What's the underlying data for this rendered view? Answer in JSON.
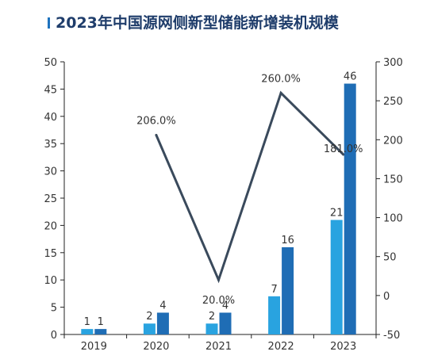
{
  "title": "2023年中国源网侧新型储能新增装机规模",
  "chart_data": {
    "type": "bar",
    "categories": [
      "2019",
      "2020",
      "2021",
      "2022",
      "2023"
    ],
    "series": [
      {
        "kind": "bar",
        "values": [
          1,
          2,
          2,
          7,
          21
        ],
        "color": "#29a3e0"
      },
      {
        "kind": "bar",
        "values": [
          1,
          4,
          4,
          16,
          46
        ],
        "color": "#1f6db5"
      },
      {
        "kind": "line",
        "axis": "right",
        "values": [
          null,
          206.0,
          20.0,
          260.0,
          181.0
        ],
        "labels": [
          "",
          "206.0%",
          "20.0%",
          "260.0%",
          "181.0%"
        ],
        "color": "#3a4a5c"
      }
    ],
    "yleft": {
      "min": 0,
      "max": 50,
      "step": 5
    },
    "yright": {
      "min": -50,
      "max": 300,
      "step": 50
    },
    "grid": false
  }
}
